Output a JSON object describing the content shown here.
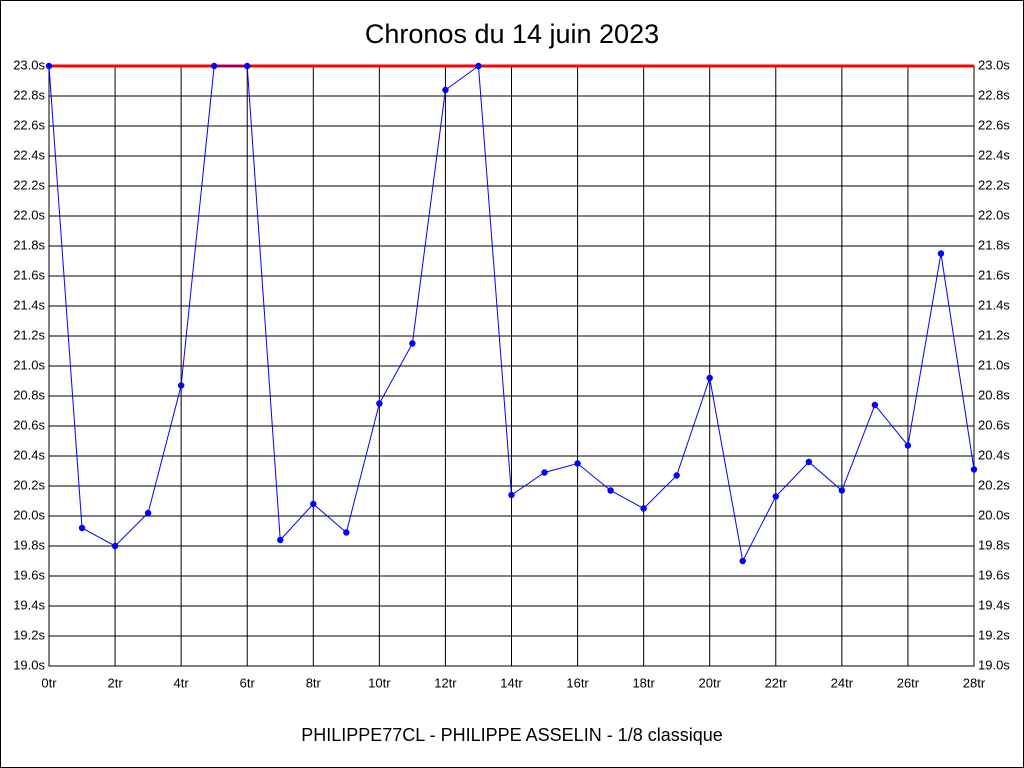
{
  "chart_data": {
    "type": "line",
    "title": "Chronos du 14 juin 2023",
    "xlabel": "PHILIPPE77CL - PHILIPPE ASSELIN - 1/8 classique",
    "x": [
      0,
      1,
      2,
      3,
      4,
      5,
      6,
      7,
      8,
      9,
      10,
      11,
      12,
      13,
      14,
      15,
      16,
      17,
      18,
      19,
      20,
      21,
      22,
      23,
      24,
      25,
      26,
      27,
      28
    ],
    "series": [
      {
        "color": "#0000ff",
        "values": [
          23.0,
          19.92,
          19.8,
          20.02,
          20.87,
          23.0,
          23.0,
          19.84,
          20.08,
          19.89,
          20.75,
          21.15,
          22.84,
          23.0,
          20.14,
          20.29,
          20.35,
          20.17,
          20.05,
          20.27,
          20.92,
          19.7,
          20.13,
          20.36,
          20.17,
          20.74,
          20.47,
          21.75,
          20.31
        ]
      }
    ],
    "reference_line": {
      "value": 23.0,
      "color": "#ff0000"
    },
    "xlim": [
      0,
      28
    ],
    "xticks": [
      {
        "value": 0,
        "label": "0tr"
      },
      {
        "value": 2,
        "label": "2tr"
      },
      {
        "value": 4,
        "label": "4tr"
      },
      {
        "value": 6,
        "label": "6tr"
      },
      {
        "value": 8,
        "label": "8tr"
      },
      {
        "value": 10,
        "label": "10tr"
      },
      {
        "value": 12,
        "label": "12tr"
      },
      {
        "value": 14,
        "label": "14tr"
      },
      {
        "value": 16,
        "label": "16tr"
      },
      {
        "value": 18,
        "label": "18tr"
      },
      {
        "value": 20,
        "label": "20tr"
      },
      {
        "value": 22,
        "label": "22tr"
      },
      {
        "value": 24,
        "label": "24tr"
      },
      {
        "value": 26,
        "label": "26tr"
      },
      {
        "value": 28,
        "label": "28tr"
      }
    ],
    "ylim": [
      19.0,
      23.0
    ],
    "yticks": [
      {
        "value": 19.0,
        "label": "19.0s"
      },
      {
        "value": 19.2,
        "label": "19.2s"
      },
      {
        "value": 19.4,
        "label": "19.4s"
      },
      {
        "value": 19.6,
        "label": "19.6s"
      },
      {
        "value": 19.8,
        "label": "19.8s"
      },
      {
        "value": 20.0,
        "label": "20.0s"
      },
      {
        "value": 20.2,
        "label": "20.2s"
      },
      {
        "value": 20.4,
        "label": "20.4s"
      },
      {
        "value": 20.6,
        "label": "20.6s"
      },
      {
        "value": 20.8,
        "label": "20.8s"
      },
      {
        "value": 21.0,
        "label": "21.0s"
      },
      {
        "value": 21.2,
        "label": "21.2s"
      },
      {
        "value": 21.4,
        "label": "21.4s"
      },
      {
        "value": 21.6,
        "label": "21.6s"
      },
      {
        "value": 21.8,
        "label": "21.8s"
      },
      {
        "value": 22.0,
        "label": "22.0s"
      },
      {
        "value": 22.2,
        "label": "22.2s"
      },
      {
        "value": 22.4,
        "label": "22.4s"
      },
      {
        "value": 22.6,
        "label": "22.6s"
      },
      {
        "value": 22.8,
        "label": "22.8s"
      },
      {
        "value": 23.0,
        "label": "23.0s"
      }
    ],
    "grid": true
  }
}
